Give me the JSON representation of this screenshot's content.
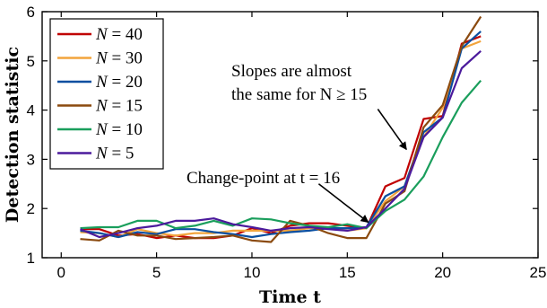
{
  "chart_data": {
    "type": "line",
    "title": "",
    "xlabel": "Time t",
    "ylabel": "Detection statistic",
    "xlim": [
      -1,
      25
    ],
    "ylim": [
      1,
      6
    ],
    "xticks": [
      0,
      5,
      10,
      15,
      20,
      25
    ],
    "yticks": [
      1,
      2,
      3,
      4,
      5,
      6
    ],
    "grid": false,
    "legend_position": "top-left",
    "x": [
      1,
      2,
      3,
      4,
      5,
      6,
      7,
      8,
      9,
      10,
      11,
      12,
      13,
      14,
      15,
      16,
      17,
      18,
      19,
      20,
      21,
      22
    ],
    "series": [
      {
        "name": "N = 40",
        "label_var": "N",
        "label_val": "40",
        "color": "#c00000",
        "values": [
          1.58,
          1.58,
          1.45,
          1.48,
          1.4,
          1.45,
          1.4,
          1.4,
          1.45,
          1.6,
          1.5,
          1.65,
          1.7,
          1.7,
          1.65,
          1.6,
          2.45,
          2.62,
          3.82,
          3.88,
          5.35,
          5.5
        ]
      },
      {
        "name": "N = 30",
        "label_var": "N",
        "label_val": "30",
        "color": "#f2a43c",
        "values": [
          1.52,
          1.5,
          1.42,
          1.58,
          1.5,
          1.45,
          1.5,
          1.5,
          1.55,
          1.55,
          1.55,
          1.55,
          1.6,
          1.6,
          1.55,
          1.6,
          2.15,
          2.45,
          3.45,
          4.05,
          5.25,
          5.4
        ]
      },
      {
        "name": "N = 20",
        "label_var": "N",
        "label_val": "20",
        "color": "#0a4fa0",
        "values": [
          1.55,
          1.5,
          1.42,
          1.52,
          1.48,
          1.58,
          1.58,
          1.52,
          1.48,
          1.42,
          1.48,
          1.52,
          1.55,
          1.6,
          1.6,
          1.62,
          2.25,
          2.45,
          3.55,
          3.85,
          5.25,
          5.6
        ]
      },
      {
        "name": "N = 15",
        "label_var": "N",
        "label_val": "15",
        "color": "#8b4a0f",
        "values": [
          1.38,
          1.35,
          1.55,
          1.45,
          1.45,
          1.38,
          1.4,
          1.42,
          1.45,
          1.35,
          1.32,
          1.75,
          1.65,
          1.5,
          1.4,
          1.4,
          2.1,
          2.35,
          3.65,
          4.1,
          5.3,
          5.9
        ]
      },
      {
        "name": "N = 10",
        "label_var": "N",
        "label_val": "10",
        "color": "#1a9e5c",
        "values": [
          1.6,
          1.62,
          1.62,
          1.75,
          1.75,
          1.6,
          1.65,
          1.75,
          1.65,
          1.8,
          1.78,
          1.7,
          1.65,
          1.62,
          1.68,
          1.6,
          1.95,
          2.18,
          2.65,
          3.45,
          4.15,
          4.6
        ]
      },
      {
        "name": "N = 5",
        "label_var": "N",
        "label_val": "5",
        "color": "#4b1a9c",
        "values": [
          1.58,
          1.42,
          1.5,
          1.6,
          1.65,
          1.75,
          1.75,
          1.8,
          1.68,
          1.62,
          1.55,
          1.6,
          1.62,
          1.58,
          1.55,
          1.62,
          2.0,
          2.4,
          3.45,
          3.85,
          4.85,
          5.2
        ]
      }
    ],
    "annotations": [
      {
        "id": "change",
        "lines": [
          "Change-point at t = 16"
        ],
        "arrow_from": [
          13.5,
          2.5
        ],
        "arrow_to": [
          16.1,
          1.72
        ]
      },
      {
        "id": "slopes",
        "lines": [
          "Slopes are almost",
          "the same for N ≥ 15"
        ],
        "arrow_from": [
          16.6,
          4.02
        ],
        "arrow_to": [
          18.1,
          3.2
        ]
      }
    ]
  }
}
